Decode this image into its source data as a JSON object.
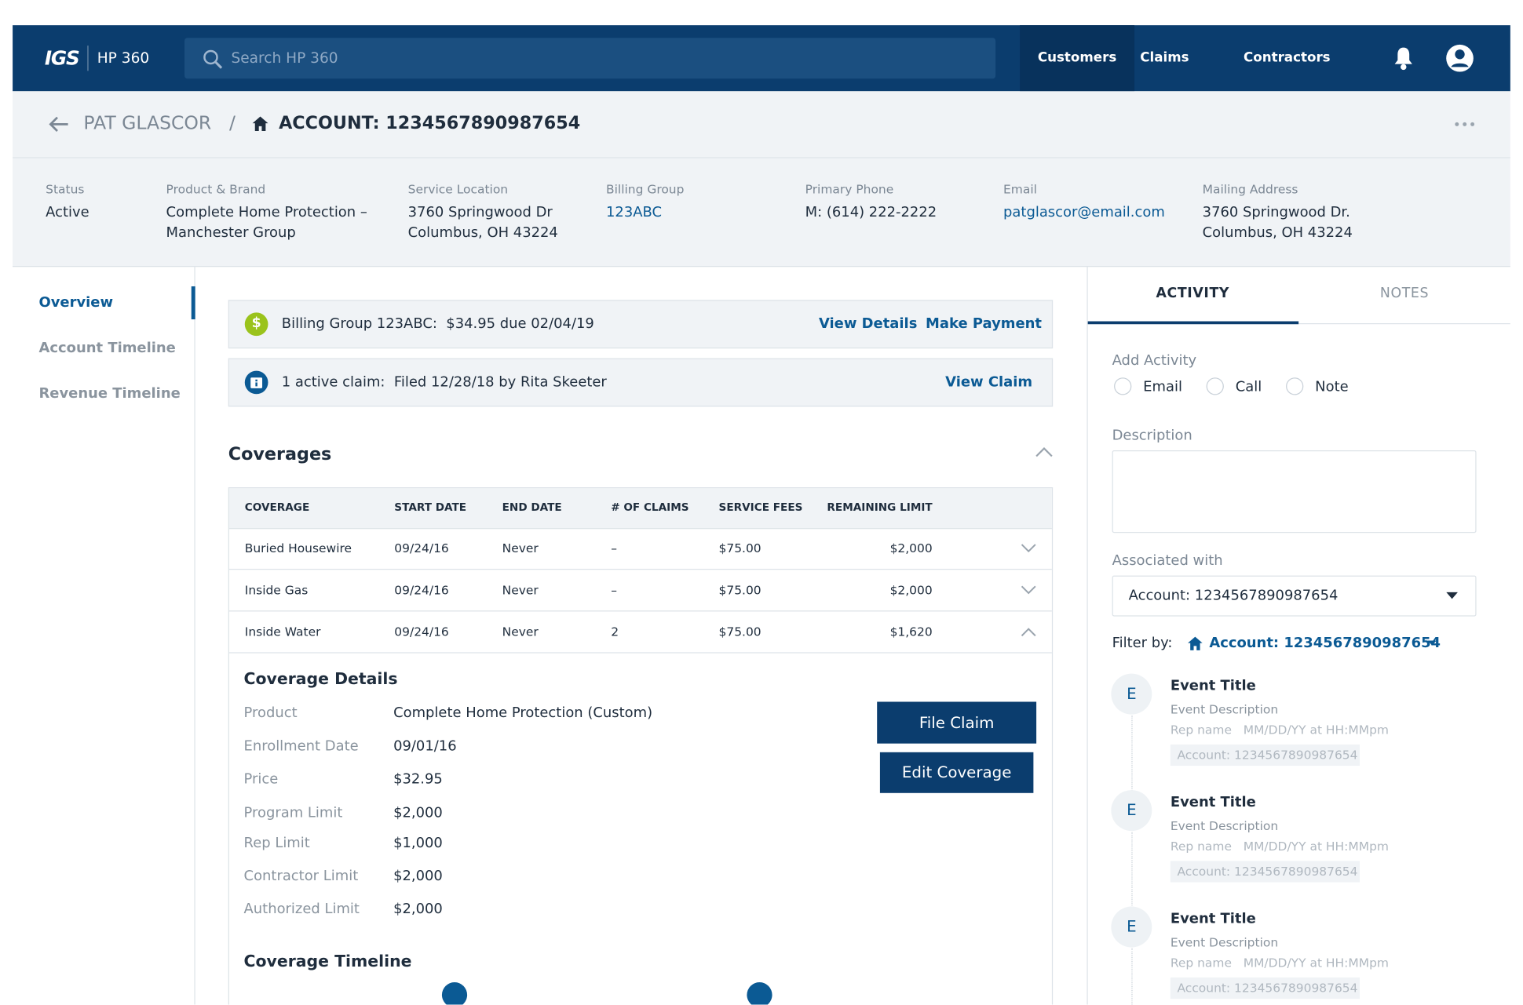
{
  "header": {
    "logo": "IGS",
    "app_name": "HP 360",
    "search_placeholder": "Search HP 360",
    "nav": [
      "Customers",
      "Claims",
      "Contractors"
    ]
  },
  "breadcrumb": {
    "customer": "PAT GLASCOR",
    "separator": "/",
    "account": "ACCOUNT: 1234567890987654"
  },
  "info": [
    {
      "label": "Status",
      "lines": [
        "Active"
      ]
    },
    {
      "label": "Product & Brand",
      "lines": [
        "Complete Home Protection –",
        "Manchester Group"
      ]
    },
    {
      "label": "Service Location",
      "lines": [
        "3760 Springwood Dr",
        "Columbus, OH 43224"
      ]
    },
    {
      "label": "Billing Group",
      "lines": [
        "123ABC"
      ]
    },
    {
      "label": "Primary Phone",
      "lines": [
        "M: (614) 222-2222"
      ]
    },
    {
      "label": "Email",
      "lines": [
        "patglascor@email.com"
      ]
    },
    {
      "label": "Mailing Address",
      "lines": [
        "3760 Springwood Dr.",
        "Columbus, OH 43224"
      ]
    }
  ],
  "sidenav": [
    "Overview",
    "Account Timeline",
    "Revenue Timeline"
  ],
  "billing_alert": {
    "icon": "$",
    "text": "Billing Group 123ABC:  $34.95 due 02/04/19",
    "links": [
      "View Details",
      "Make Payment"
    ]
  },
  "claim_alert": {
    "text": "1 active claim:  Filed 12/28/18 by Rita Skeeter",
    "link": "View Claim"
  },
  "coverages": {
    "title": "Coverages",
    "columns": [
      "COVERAGE",
      "START DATE",
      "END DATE",
      "# OF CLAIMS",
      "SERVICE FEES",
      "REMAINING LIMIT"
    ],
    "rows": [
      [
        "Buried Housewire",
        "09/24/16",
        "Never",
        "–",
        "$75.00",
        "$2,000"
      ],
      [
        "Inside Gas",
        "09/24/16",
        "Never",
        "–",
        "$75.00",
        "$2,000"
      ],
      [
        "Inside Water",
        "09/24/16",
        "Never",
        "2",
        "$75.00",
        "$1,620"
      ]
    ],
    "details_title": "Coverage Details",
    "details": [
      {
        "label": "Product",
        "value": "Complete Home Protection (Custom)"
      },
      {
        "label": "Enrollment Date",
        "value": "09/01/16"
      },
      {
        "label": "Price",
        "value": "$32.95"
      },
      {
        "label": "Program Limit",
        "value": "$2,000"
      },
      {
        "label": "Rep Limit",
        "value": "$1,000"
      },
      {
        "label": "Contractor Limit",
        "value": "$2,000"
      },
      {
        "label": "Authorized Limit",
        "value": "$2,000"
      }
    ],
    "buttons": [
      "File Claim",
      "Edit Coverage"
    ],
    "timeline_title": "Coverage Timeline"
  },
  "activity": {
    "tabs": [
      "ACTIVITY",
      "NOTES"
    ],
    "add_label": "Add Activity",
    "options": [
      "Email",
      "Call",
      "Note"
    ],
    "description_label": "Description",
    "associated_label": "Associated with",
    "associated_value": "Account: 1234567890987654",
    "filter_label": "Filter by:",
    "filter_value": "Account: 1234567890987654",
    "events": [
      {
        "initial": "E",
        "title": "Event Title",
        "description": "Event Description",
        "meta": "Rep name   MM/DD/YY at HH:MMpm",
        "account": "Account: 1234567890987654"
      },
      {
        "initial": "E",
        "title": "Event Title",
        "description": "Event Description",
        "meta": "Rep name   MM/DD/YY at HH:MMpm",
        "account": "Account: 1234567890987654"
      },
      {
        "initial": "E",
        "title": "Event Title",
        "description": "Event Description",
        "meta": "Rep name   MM/DD/YY at HH:MMpm",
        "account": "Account: 1234567890987654"
      }
    ]
  }
}
